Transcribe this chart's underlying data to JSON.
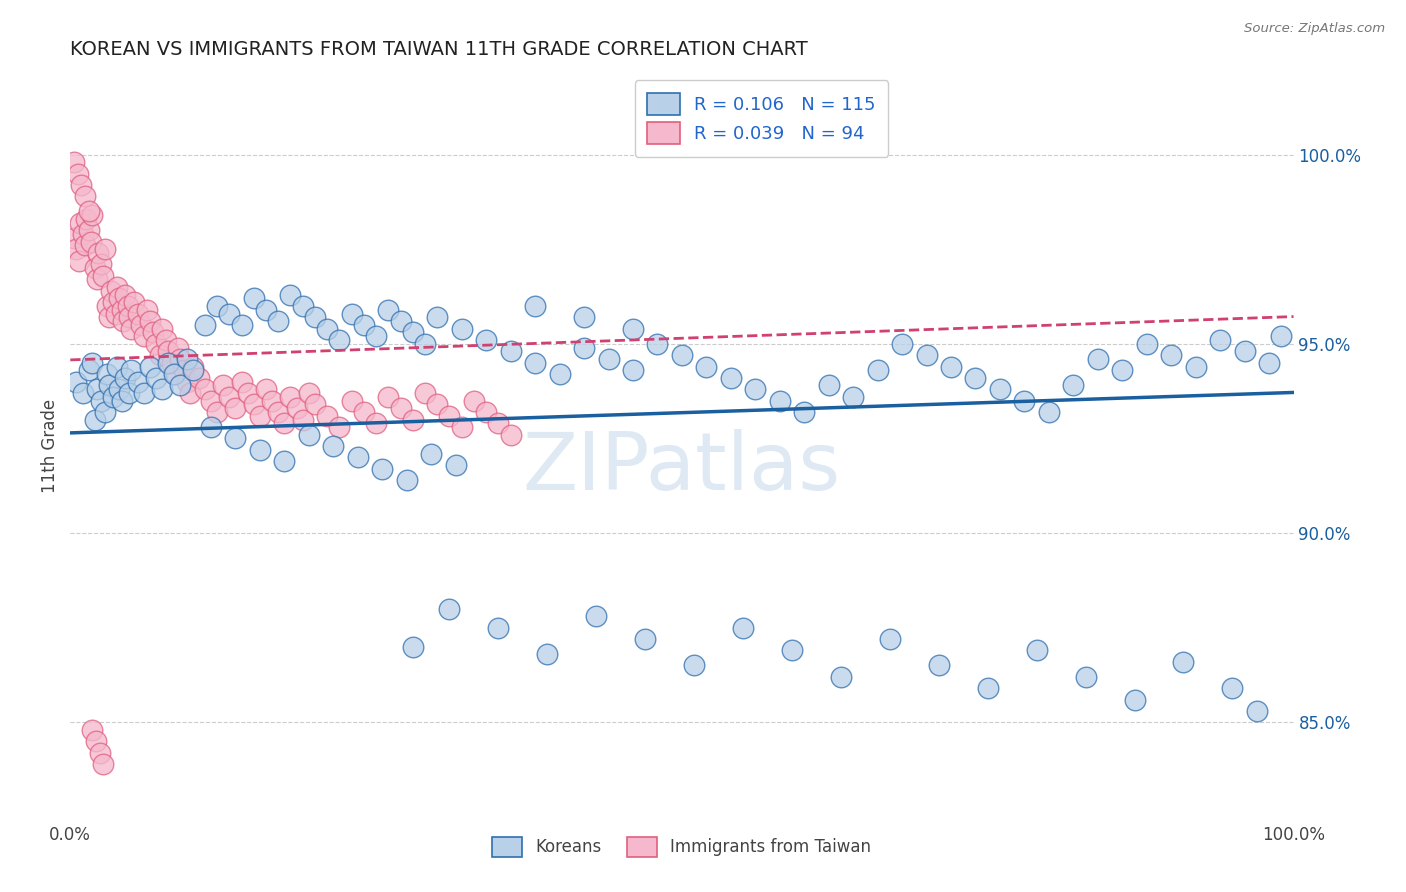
{
  "title": "KOREAN VS IMMIGRANTS FROM TAIWAN 11TH GRADE CORRELATION CHART",
  "source_text": "Source: ZipAtlas.com",
  "ylabel": "11th Grade",
  "y_tick_labels": [
    "85.0%",
    "90.0%",
    "95.0%",
    "100.0%"
  ],
  "y_tick_values": [
    0.85,
    0.9,
    0.95,
    1.0
  ],
  "x_lim": [
    0.0,
    1.0
  ],
  "y_lim": [
    0.824,
    1.022
  ],
  "blue_color": "#b8d0e8",
  "blue_edge": "#3070b0",
  "blue_line_color": "#1a5fa0",
  "pink_color": "#f5b8cc",
  "pink_edge": "#e06080",
  "pink_line_color": "#d04070",
  "watermark": "ZIPatlas",
  "legend_R_N_color": "#2266cc",
  "blue_R": 0.106,
  "blue_N": 115,
  "pink_R": 0.039,
  "pink_N": 94,
  "blue_scatter_x": [
    0.005,
    0.01,
    0.015,
    0.018,
    0.02,
    0.022,
    0.025,
    0.028,
    0.03,
    0.032,
    0.035,
    0.038,
    0.04,
    0.042,
    0.045,
    0.048,
    0.05,
    0.055,
    0.06,
    0.065,
    0.07,
    0.075,
    0.08,
    0.085,
    0.09,
    0.095,
    0.1,
    0.11,
    0.12,
    0.13,
    0.14,
    0.15,
    0.16,
    0.17,
    0.18,
    0.19,
    0.2,
    0.21,
    0.22,
    0.23,
    0.24,
    0.25,
    0.26,
    0.27,
    0.28,
    0.29,
    0.3,
    0.32,
    0.34,
    0.36,
    0.38,
    0.4,
    0.42,
    0.44,
    0.46,
    0.48,
    0.5,
    0.52,
    0.54,
    0.56,
    0.58,
    0.6,
    0.62,
    0.64,
    0.66,
    0.68,
    0.7,
    0.72,
    0.74,
    0.76,
    0.78,
    0.8,
    0.82,
    0.84,
    0.86,
    0.88,
    0.9,
    0.92,
    0.94,
    0.96,
    0.98,
    0.99,
    0.38,
    0.42,
    0.46,
    0.28,
    0.31,
    0.35,
    0.39,
    0.43,
    0.47,
    0.51,
    0.55,
    0.59,
    0.63,
    0.67,
    0.71,
    0.75,
    0.79,
    0.83,
    0.87,
    0.91,
    0.95,
    0.97,
    0.115,
    0.135,
    0.155,
    0.175,
    0.195,
    0.215,
    0.235,
    0.255,
    0.275,
    0.295,
    0.315
  ],
  "blue_scatter_y": [
    0.94,
    0.937,
    0.943,
    0.945,
    0.93,
    0.938,
    0.935,
    0.932,
    0.942,
    0.939,
    0.936,
    0.944,
    0.938,
    0.935,
    0.941,
    0.937,
    0.943,
    0.94,
    0.937,
    0.944,
    0.941,
    0.938,
    0.945,
    0.942,
    0.939,
    0.946,
    0.943,
    0.955,
    0.96,
    0.958,
    0.955,
    0.962,
    0.959,
    0.956,
    0.963,
    0.96,
    0.957,
    0.954,
    0.951,
    0.958,
    0.955,
    0.952,
    0.959,
    0.956,
    0.953,
    0.95,
    0.957,
    0.954,
    0.951,
    0.948,
    0.945,
    0.942,
    0.949,
    0.946,
    0.943,
    0.95,
    0.947,
    0.944,
    0.941,
    0.938,
    0.935,
    0.932,
    0.939,
    0.936,
    0.943,
    0.95,
    0.947,
    0.944,
    0.941,
    0.938,
    0.935,
    0.932,
    0.939,
    0.946,
    0.943,
    0.95,
    0.947,
    0.944,
    0.951,
    0.948,
    0.945,
    0.952,
    0.96,
    0.957,
    0.954,
    0.87,
    0.88,
    0.875,
    0.868,
    0.878,
    0.872,
    0.865,
    0.875,
    0.869,
    0.862,
    0.872,
    0.865,
    0.859,
    0.869,
    0.862,
    0.856,
    0.866,
    0.859,
    0.853,
    0.928,
    0.925,
    0.922,
    0.919,
    0.926,
    0.923,
    0.92,
    0.917,
    0.914,
    0.921,
    0.918
  ],
  "pink_scatter_x": [
    0.003,
    0.005,
    0.007,
    0.008,
    0.01,
    0.012,
    0.013,
    0.015,
    0.017,
    0.018,
    0.02,
    0.022,
    0.023,
    0.025,
    0.027,
    0.028,
    0.03,
    0.032,
    0.033,
    0.035,
    0.037,
    0.038,
    0.04,
    0.042,
    0.043,
    0.045,
    0.047,
    0.048,
    0.05,
    0.052,
    0.055,
    0.058,
    0.06,
    0.063,
    0.065,
    0.068,
    0.07,
    0.073,
    0.075,
    0.078,
    0.08,
    0.083,
    0.085,
    0.088,
    0.09,
    0.093,
    0.095,
    0.098,
    0.1,
    0.105,
    0.11,
    0.115,
    0.12,
    0.125,
    0.13,
    0.135,
    0.14,
    0.145,
    0.15,
    0.155,
    0.16,
    0.165,
    0.17,
    0.175,
    0.18,
    0.185,
    0.19,
    0.195,
    0.2,
    0.21,
    0.22,
    0.23,
    0.24,
    0.25,
    0.26,
    0.27,
    0.28,
    0.29,
    0.3,
    0.31,
    0.32,
    0.33,
    0.34,
    0.35,
    0.36,
    0.003,
    0.006,
    0.009,
    0.012,
    0.015,
    0.018,
    0.021,
    0.024,
    0.027
  ],
  "pink_scatter_y": [
    0.978,
    0.975,
    0.972,
    0.982,
    0.979,
    0.976,
    0.983,
    0.98,
    0.977,
    0.984,
    0.97,
    0.967,
    0.974,
    0.971,
    0.968,
    0.975,
    0.96,
    0.957,
    0.964,
    0.961,
    0.958,
    0.965,
    0.962,
    0.959,
    0.956,
    0.963,
    0.96,
    0.957,
    0.954,
    0.961,
    0.958,
    0.955,
    0.952,
    0.959,
    0.956,
    0.953,
    0.95,
    0.947,
    0.954,
    0.951,
    0.948,
    0.945,
    0.942,
    0.949,
    0.946,
    0.943,
    0.94,
    0.937,
    0.944,
    0.941,
    0.938,
    0.935,
    0.932,
    0.939,
    0.936,
    0.933,
    0.94,
    0.937,
    0.934,
    0.931,
    0.938,
    0.935,
    0.932,
    0.929,
    0.936,
    0.933,
    0.93,
    0.937,
    0.934,
    0.931,
    0.928,
    0.935,
    0.932,
    0.929,
    0.936,
    0.933,
    0.93,
    0.937,
    0.934,
    0.931,
    0.928,
    0.935,
    0.932,
    0.929,
    0.926,
    0.998,
    0.995,
    0.992,
    0.989,
    0.985,
    0.848,
    0.845,
    0.842,
    0.839
  ]
}
